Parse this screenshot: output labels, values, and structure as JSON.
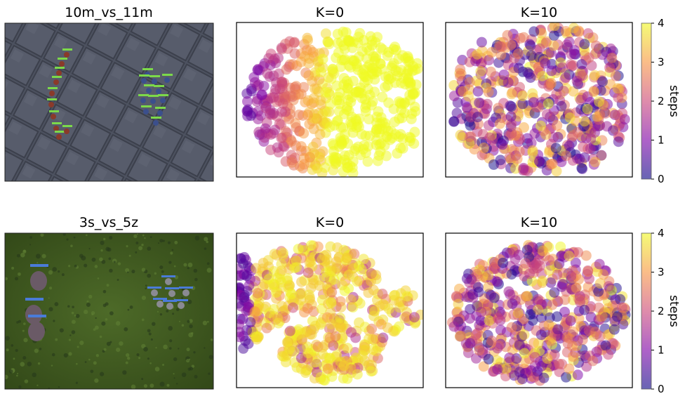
{
  "rows": [
    {
      "map_name": "10m_vs_11m",
      "scene": "metal",
      "panels": [
        {
          "title": "K=0",
          "layout": "rounded"
        },
        {
          "title": "K=10",
          "layout": "mixed"
        }
      ]
    },
    {
      "map_name": "3s_vs_5z",
      "scene": "grass",
      "panels": [
        {
          "title": "K=0",
          "layout": "arrow"
        },
        {
          "title": "K=10",
          "layout": "blob"
        }
      ]
    }
  ],
  "colorbar": {
    "label": "steps",
    "ticks": [
      "0",
      "1",
      "2",
      "3",
      "4"
    ],
    "colormap": "plasma",
    "range": [
      0,
      4
    ]
  },
  "chart_data": [
    {
      "type": "scatter",
      "title": "K=0",
      "row": "10m_vs_11m",
      "color_variable": "steps",
      "color_range": [
        0,
        4
      ],
      "axes": "no ticks",
      "description_of_distribution": "dark purple points concentrated at left edge, transitioning to orange and yellow toward right"
    },
    {
      "type": "scatter",
      "title": "K=10",
      "row": "10m_vs_11m",
      "color_variable": "steps",
      "color_range": [
        0,
        4
      ],
      "axes": "no ticks",
      "description_of_distribution": "colors mixed throughout"
    },
    {
      "type": "scatter",
      "title": "K=0",
      "row": "3s_vs_5z",
      "color_variable": "steps",
      "color_range": [
        0,
        4
      ],
      "axes": "no ticks",
      "description_of_distribution": "mostly yellow with purple cluster at left point"
    },
    {
      "type": "scatter",
      "title": "K=10",
      "row": "3s_vs_5z",
      "color_variable": "steps",
      "color_range": [
        0,
        4
      ],
      "axes": "no ticks",
      "description_of_distribution": "colors mixed throughout"
    }
  ]
}
